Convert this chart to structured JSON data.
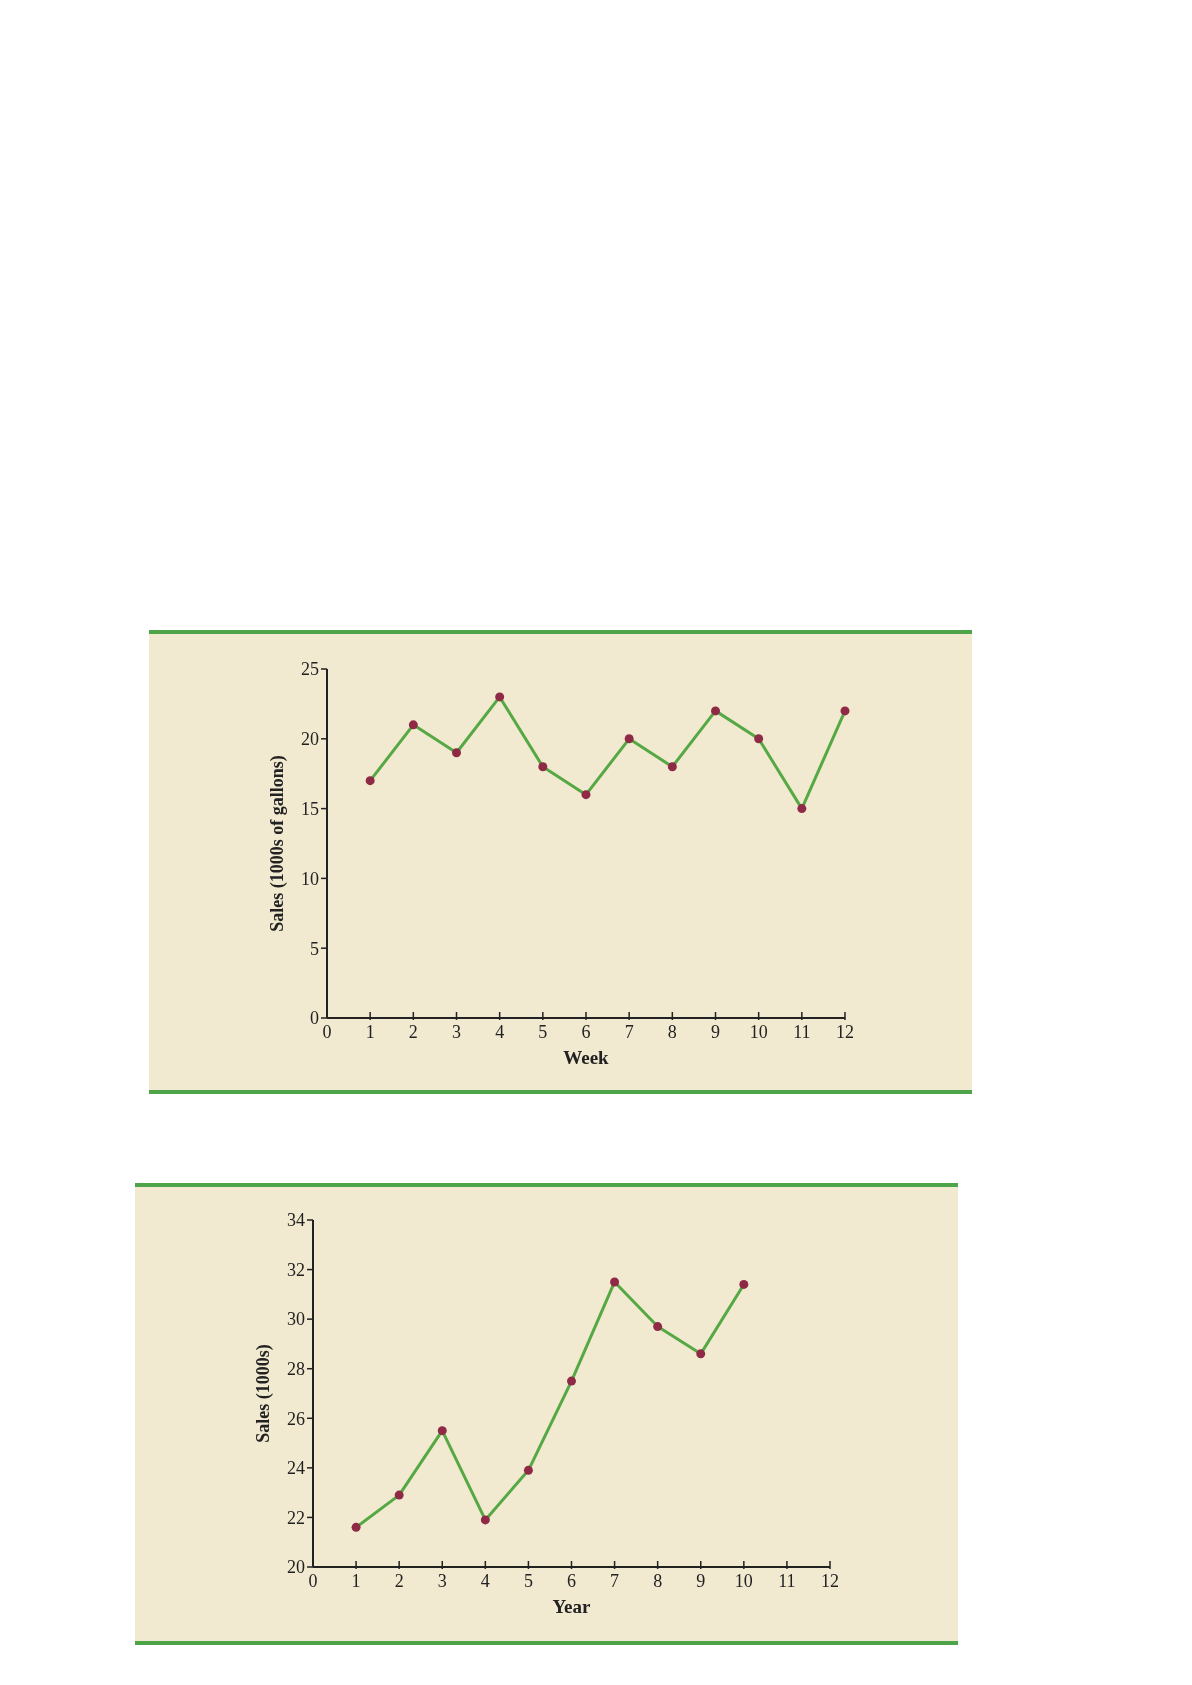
{
  "chart_data": [
    {
      "type": "line",
      "xlabel": "Week",
      "ylabel": "Sales (1000s of gallons)",
      "x": [
        1,
        2,
        3,
        4,
        5,
        6,
        7,
        8,
        9,
        10,
        11,
        12
      ],
      "xlim": [
        0,
        12
      ],
      "xticks": [
        0,
        1,
        2,
        3,
        4,
        5,
        6,
        7,
        8,
        9,
        10,
        11,
        12
      ],
      "ylim": [
        0,
        25
      ],
      "yticks": [
        0,
        5,
        10,
        15,
        20,
        25
      ],
      "marker": "circle",
      "series": [
        {
          "color": "#56a844",
          "colors": [
            "#8e2a45",
            "#8e2a45",
            "#8e2a45",
            "#8e2a45",
            "#8e2a45",
            "#8e2a45",
            "#8e2a45",
            "#8e2a45",
            "#8e2a45",
            "#8e2a45",
            "#8e2a45",
            "#8e2a45"
          ],
          "values": [
            17,
            21,
            19,
            23,
            18,
            16,
            20,
            18,
            22,
            20,
            15,
            22
          ]
        }
      ]
    },
    {
      "type": "line",
      "xlabel": "Year",
      "ylabel": "Sales (1000s)",
      "x": [
        1,
        2,
        3,
        4,
        5,
        6,
        7,
        8,
        9,
        10
      ],
      "xlim": [
        0,
        12
      ],
      "xticks": [
        0,
        1,
        2,
        3,
        4,
        5,
        6,
        7,
        8,
        9,
        10,
        11,
        12
      ],
      "ylim": [
        20,
        34
      ],
      "yticks": [
        20,
        22,
        24,
        26,
        28,
        30,
        32,
        34
      ],
      "marker": "circle",
      "series": [
        {
          "color": "#56a844",
          "colors": [
            "#8e2a45",
            "#8e2a45",
            "#8e2a45",
            "#8e2a45",
            "#8e2a45",
            "#8e2a45",
            "#8e2a45",
            "#8e2a45",
            "#8e2a45",
            "#8e2a45"
          ],
          "values": [
            21.6,
            22.9,
            25.5,
            21.9,
            23.9,
            27.5,
            31.5,
            29.7,
            28.6,
            31.4
          ]
        }
      ]
    }
  ]
}
